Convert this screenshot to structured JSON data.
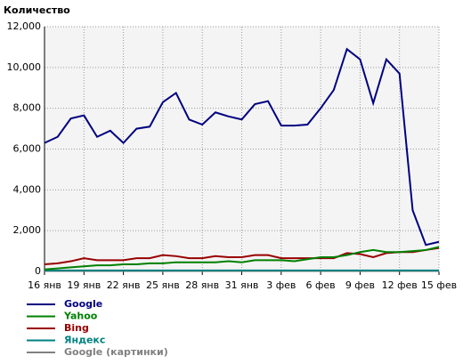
{
  "chart_data": {
    "type": "line",
    "title": "Количество",
    "categories": [
      "16 янв",
      null,
      null,
      "19 янв",
      null,
      null,
      "22 янв",
      null,
      null,
      "25 янв",
      null,
      null,
      "28 янв",
      null,
      null,
      "31 янв",
      null,
      null,
      "3 фев",
      null,
      null,
      "6 фев",
      null,
      null,
      "9 фев",
      null,
      null,
      "12 фев",
      null,
      null,
      "15 фев"
    ],
    "series": [
      {
        "name": "Google",
        "color": "#000080",
        "values": [
          6300,
          6600,
          7500,
          7650,
          6600,
          6900,
          6300,
          7000,
          7100,
          8300,
          8750,
          7450,
          7200,
          7800,
          7600,
          7450,
          8200,
          8350,
          7150,
          7150,
          7200,
          8000,
          8900,
          10900,
          10400,
          8250,
          10400,
          9700,
          3000,
          1300,
          1450
        ]
      },
      {
        "name": "Yahoo",
        "color": "#008000",
        "values": [
          100,
          150,
          200,
          250,
          300,
          300,
          350,
          350,
          400,
          400,
          450,
          450,
          450,
          450,
          500,
          450,
          550,
          550,
          550,
          500,
          600,
          700,
          700,
          800,
          950,
          1050,
          950,
          950,
          1000,
          1050,
          1200
        ]
      },
      {
        "name": "Bing",
        "color": "#990000",
        "values": [
          350,
          400,
          500,
          650,
          550,
          550,
          550,
          650,
          650,
          800,
          750,
          650,
          650,
          750,
          700,
          700,
          800,
          800,
          650,
          650,
          650,
          650,
          650,
          900,
          850,
          700,
          900,
          950,
          950,
          1050,
          1150
        ]
      },
      {
        "name": "Яндекс",
        "color": "#008080",
        "values": [
          50,
          50,
          50,
          50,
          50,
          50,
          50,
          50,
          50,
          50,
          50,
          50,
          50,
          50,
          50,
          50,
          50,
          50,
          50,
          50,
          50,
          50,
          50,
          50,
          50,
          50,
          50,
          50,
          50,
          50,
          50
        ]
      },
      {
        "name": "Google (картинки)",
        "color": "#808080",
        "values": [
          20,
          20,
          20,
          20,
          20,
          20,
          20,
          20,
          20,
          20,
          20,
          20,
          20,
          20,
          20,
          20,
          20,
          20,
          20,
          20,
          20,
          20,
          20,
          20,
          20,
          20,
          20,
          20,
          20,
          20,
          20
        ]
      }
    ],
    "ylim": [
      0,
      12000
    ],
    "yticks": [
      0,
      {
        "value": 2000,
        "label": "2,000"
      },
      {
        "value": 4000,
        "label": "4,000"
      },
      {
        "value": 6000,
        "label": "6,000"
      },
      {
        "value": 8000,
        "label": "8,000"
      },
      {
        "value": 10000,
        "label": "10,000"
      },
      {
        "value": 12000,
        "label": "12,000"
      }
    ],
    "grid": true
  }
}
